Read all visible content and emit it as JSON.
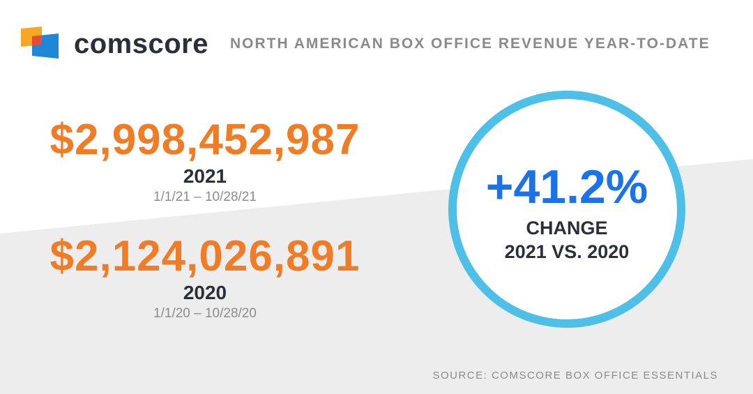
{
  "brand": {
    "name": "comscore",
    "colors": {
      "orange": "#f7a823",
      "red": "#e84a3a",
      "blue": "#1e88d6"
    }
  },
  "headline": "NORTH AMERICAN BOX OFFICE REVENUE YEAR-TO-DATE",
  "stats": [
    {
      "amount": "$2,998,452,987",
      "year": "2021",
      "range": "1/1/21 – 10/28/21"
    },
    {
      "amount": "$2,124,026,891",
      "year": "2020",
      "range": "1/1/20 – 10/28/20"
    }
  ],
  "change": {
    "percent": "+41.2%",
    "label": "CHANGE",
    "comparison": "2021 VS. 2020"
  },
  "source": "SOURCE: COMSCORE BOX OFFICE ESSENTIALS",
  "colors": {
    "amount": "#f07d26",
    "percent": "#1a73e8",
    "ring": "#4ec0e8",
    "band": "#ededee"
  }
}
